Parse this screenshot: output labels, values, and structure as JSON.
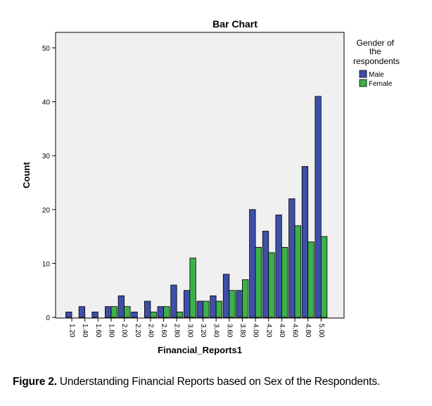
{
  "chart_data": {
    "type": "bar",
    "title": "Bar Chart",
    "xlabel": "Financial_Reports1",
    "ylabel": "Count",
    "ylim": [
      0,
      53
    ],
    "yticks": [
      0,
      10,
      20,
      30,
      40,
      50
    ],
    "grid": false,
    "legend": {
      "title_lines": [
        "Gender of",
        "the",
        "respondents"
      ],
      "placement": "right"
    },
    "categories": [
      "1.20",
      "1.40",
      "1.60",
      "1.80",
      "2.00",
      "2.20",
      "2.40",
      "2.60",
      "2.80",
      "3.00",
      "3.20",
      "3.40",
      "3.60",
      "3.80",
      "4.00",
      "4.20",
      "4.40",
      "4.60",
      "4.80",
      "5.00"
    ],
    "series": [
      {
        "name": "Male",
        "color": "#3e4fa8",
        "values": [
          1,
          2,
          1,
          2,
          4,
          1,
          3,
          2,
          6,
          5,
          3,
          4,
          8,
          5,
          20,
          16,
          19,
          22,
          28,
          41
        ]
      },
      {
        "name": "Female",
        "color": "#3cb049",
        "values": [
          0,
          0,
          0,
          2,
          2,
          0,
          1,
          2,
          1,
          11,
          3,
          3,
          5,
          7,
          13,
          12,
          13,
          17,
          14,
          15
        ]
      }
    ]
  },
  "caption": {
    "label": "Figure 2.",
    "text": " Understanding Financial Reports based on Sex of the Respondents."
  }
}
